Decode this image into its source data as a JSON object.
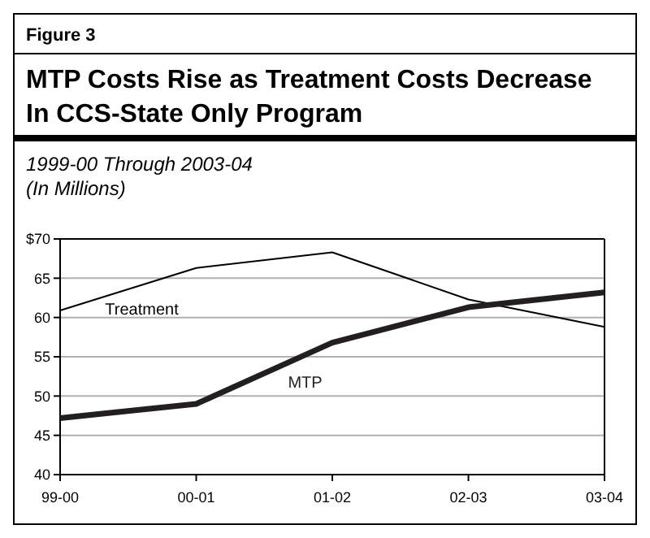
{
  "chart_data": {
    "type": "line",
    "title": "MTP Costs Rise as Treatment Costs Decrease In CCS-State Only Program",
    "subtitle": "1999-00 Through 2003-04",
    "ylabel": "(In Millions)",
    "annotations": [
      "Figure 3"
    ],
    "categories": [
      "99-00",
      "00-01",
      "01-02",
      "02-03",
      "03-04"
    ],
    "series": [
      {
        "name": "Treatment",
        "color": "#000000",
        "values": [
          60.9,
          66.3,
          68.3,
          62.3,
          58.8
        ]
      },
      {
        "name": "MTP",
        "color": "#231f20",
        "values": [
          47.2,
          49.0,
          56.8,
          61.3,
          63.2
        ]
      }
    ],
    "ylim": [
      40,
      70
    ],
    "yticks": [
      40,
      45,
      50,
      55,
      60,
      65,
      {
        "value": 70,
        "label": "$70"
      }
    ],
    "grid": "y",
    "line_style": "solid"
  }
}
